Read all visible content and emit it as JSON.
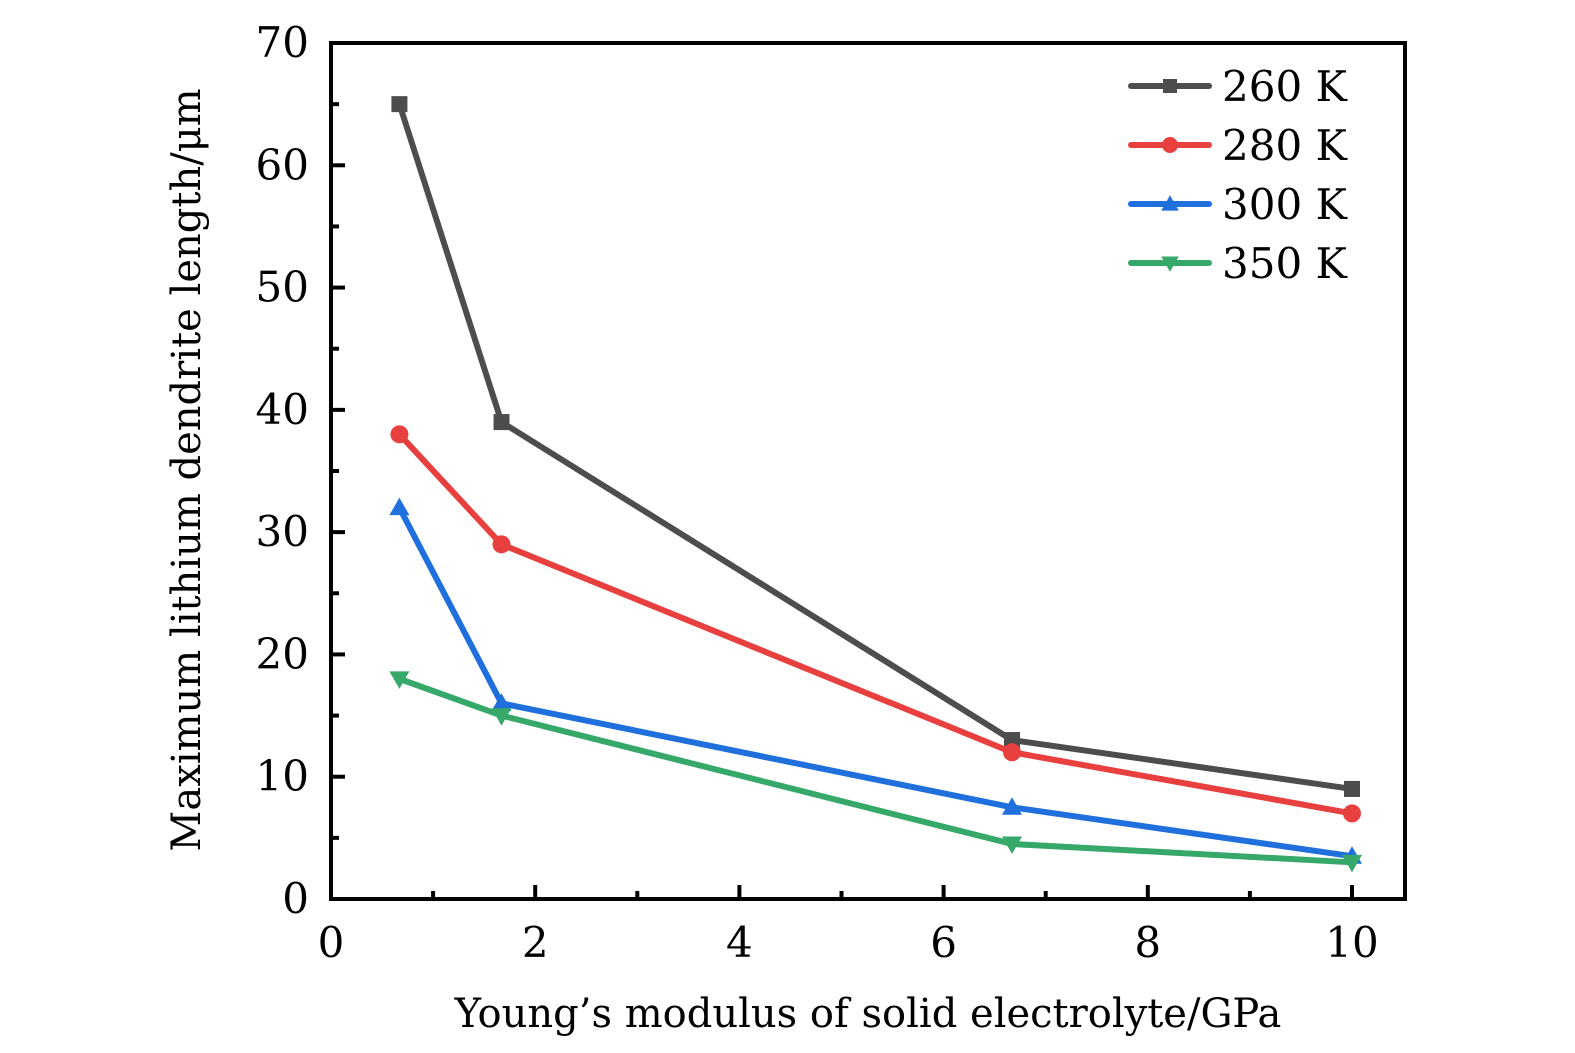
{
  "chart_data": {
    "type": "line",
    "title": "",
    "xlabel": "Young’s modulus of solid electrolyte/GPa",
    "ylabel": "Maximum lithium dendrite length/μm",
    "xlim": [
      0,
      10.5
    ],
    "ylim": [
      0,
      70
    ],
    "xticks": [
      0,
      2,
      4,
      6,
      8,
      10
    ],
    "xtick_labels": [
      "0",
      "2",
      "4",
      "6",
      "8",
      "10"
    ],
    "yticks": [
      0,
      10,
      20,
      30,
      40,
      50,
      60,
      70
    ],
    "ytick_labels": [
      "0",
      "10",
      "20",
      "30",
      "40",
      "50",
      "60",
      "70"
    ],
    "grid": false,
    "legend_position": "top-right",
    "x": [
      0.67,
      1.67,
      6.67,
      10
    ],
    "series": [
      {
        "name": "260 K",
        "color": "#4d4d4d",
        "marker": "square",
        "values": [
          65,
          39,
          13,
          9
        ]
      },
      {
        "name": "280 K",
        "color": "#e8403f",
        "marker": "circle",
        "values": [
          38,
          29,
          12,
          7
        ]
      },
      {
        "name": "300 K",
        "color": "#1f6fdc",
        "marker": "triangle-up",
        "values": [
          32,
          16,
          7.5,
          3.5
        ]
      },
      {
        "name": "350 K",
        "color": "#36a86a",
        "marker": "triangle-down",
        "values": [
          18,
          15,
          4.5,
          3
        ]
      }
    ]
  }
}
